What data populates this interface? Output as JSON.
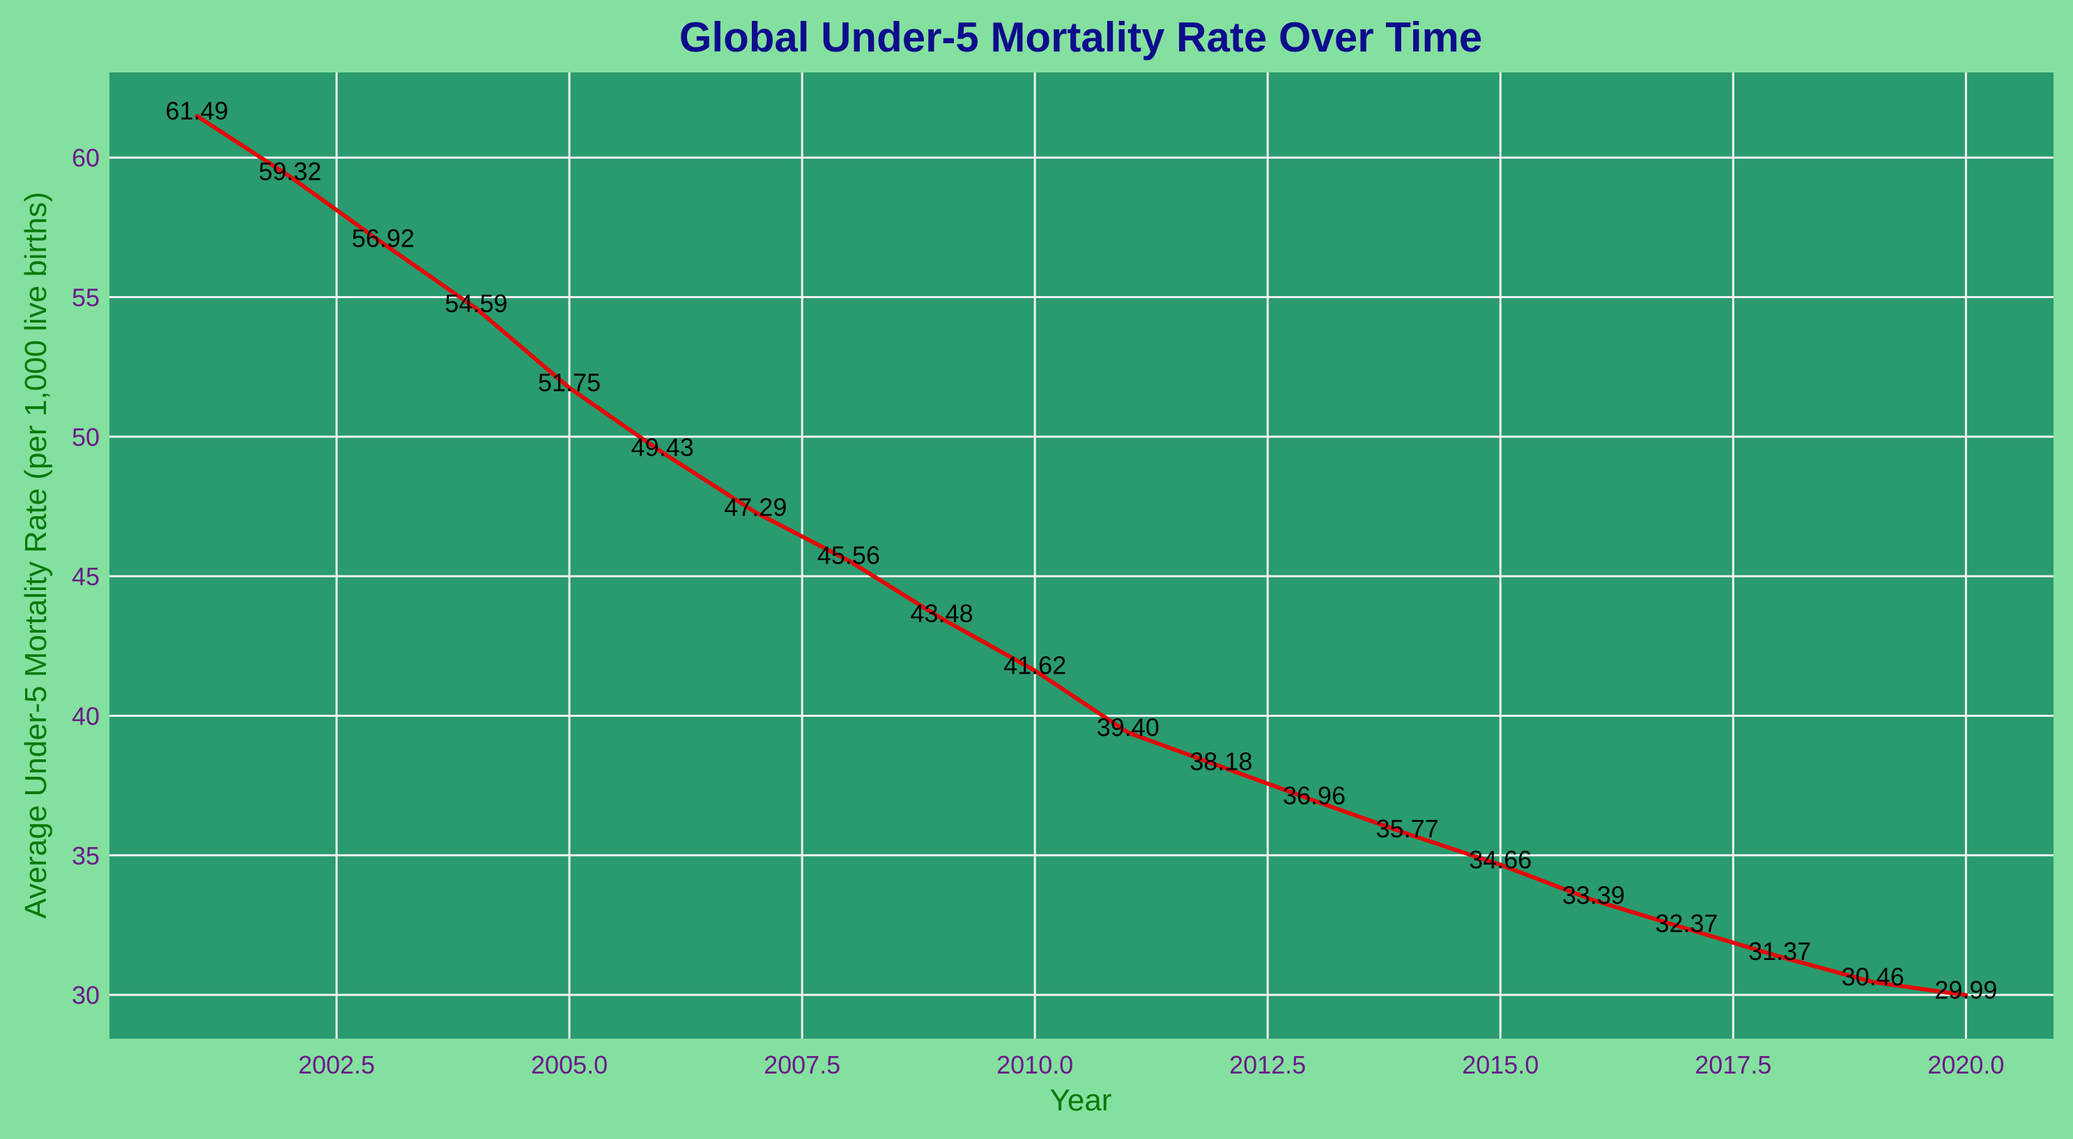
{
  "colors": {
    "page_background": "#84e09f",
    "plot_background": "#2a9b6f",
    "grid": "#f2f2f2",
    "line": "#e20b0b",
    "title": "#0d0d8c",
    "axis_label": "#0a7a0a",
    "tick_label": "#6a1b8a",
    "data_label": "#000000"
  },
  "chart_data": {
    "type": "line",
    "title": "Global Under-5 Mortality Rate Over Time",
    "xlabel": "Year",
    "ylabel": "Average Under-5 Mortality Rate (per 1,000 live births)",
    "xlim": [
      2000.06,
      2020.94
    ],
    "ylim": [
      28.43,
      63.05
    ],
    "x_ticks": [
      2002.5,
      2005.0,
      2007.5,
      2010.0,
      2012.5,
      2015.0,
      2017.5,
      2020.0
    ],
    "x_tick_labels": [
      "2002.5",
      "2005.0",
      "2007.5",
      "2010.0",
      "2012.5",
      "2015.0",
      "2017.5",
      "2020.0"
    ],
    "y_ticks": [
      30,
      35,
      40,
      45,
      50,
      55,
      60
    ],
    "y_tick_labels": [
      "30",
      "35",
      "40",
      "45",
      "50",
      "55",
      "60"
    ],
    "grid": true,
    "series": [
      {
        "x": [
          2001,
          2002,
          2003,
          2004,
          2005,
          2006,
          2007,
          2008,
          2009,
          2010,
          2011,
          2012,
          2013,
          2014,
          2015,
          2016,
          2017,
          2018,
          2019,
          2020
        ],
        "values": [
          61.49,
          59.32,
          56.92,
          54.59,
          51.75,
          49.43,
          47.29,
          45.56,
          43.48,
          41.62,
          39.4,
          38.18,
          36.96,
          35.77,
          34.66,
          33.39,
          32.37,
          31.37,
          30.46,
          29.99
        ],
        "data_labels": [
          "61.49",
          "59.32",
          "56.92",
          "54.59",
          "51.75",
          "49.43",
          "47.29",
          "45.56",
          "43.48",
          "41.62",
          "39.40",
          "38.18",
          "36.96",
          "35.77",
          "34.66",
          "33.39",
          "32.37",
          "31.37",
          "30.46",
          "29.99"
        ]
      }
    ]
  }
}
